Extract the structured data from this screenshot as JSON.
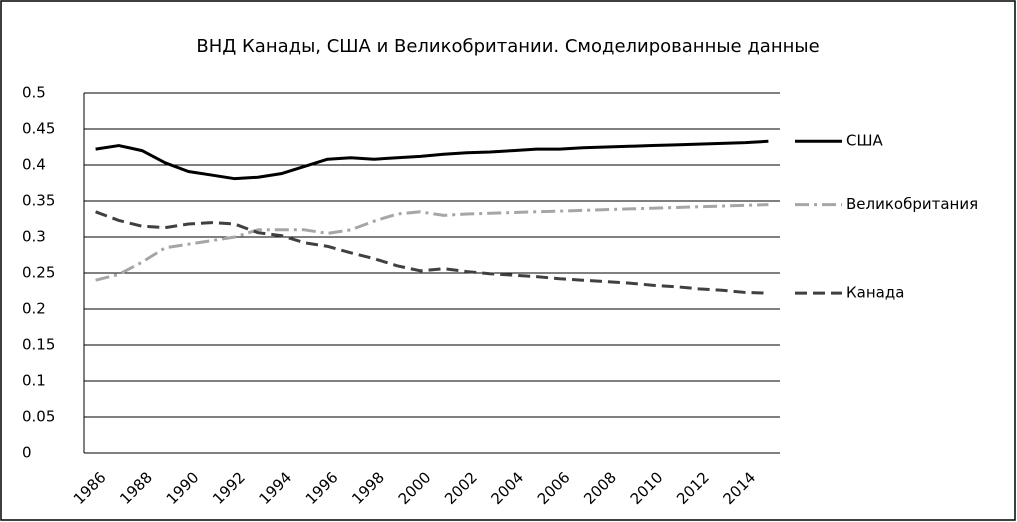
{
  "chart_data": {
    "type": "line",
    "title": "ВНД Канады, США и Великобритании. Смоделированные данные",
    "categories": [
      "1986",
      null,
      "1988",
      null,
      "1990",
      null,
      "1992",
      null,
      "1994",
      null,
      "1996",
      null,
      "1998",
      null,
      "2000",
      null,
      "2002",
      null,
      "2004",
      null,
      "2006",
      null,
      "2008",
      null,
      "2010",
      null,
      "2012",
      null,
      "2014",
      null
    ],
    "series": [
      {
        "name": "США",
        "color": "#000000",
        "dash": "solid",
        "values": [
          0.422,
          0.427,
          0.42,
          0.403,
          0.391,
          0.386,
          0.381,
          0.383,
          0.388,
          0.398,
          0.408,
          0.41,
          0.408,
          0.41,
          0.412,
          0.415,
          0.417,
          0.418,
          0.42,
          0.422,
          0.422,
          0.424,
          0.425,
          0.426,
          0.427,
          0.428,
          0.429,
          0.43,
          0.431,
          0.433
        ]
      },
      {
        "name": "Великобритания",
        "color": "#a6a6a6",
        "dash": "dashdot",
        "values": [
          0.24,
          0.248,
          0.265,
          0.285,
          0.29,
          0.295,
          0.3,
          0.31,
          0.31,
          0.31,
          0.305,
          0.31,
          0.322,
          0.332,
          0.335,
          0.33,
          0.332,
          0.333,
          0.334,
          0.335,
          0.336,
          0.337,
          0.338,
          0.339,
          0.34,
          0.341,
          0.342,
          0.343,
          0.344,
          0.345
        ]
      },
      {
        "name": "Канада",
        "color": "#404040",
        "dash": "dash",
        "values": [
          0.335,
          0.323,
          0.315,
          0.313,
          0.318,
          0.32,
          0.318,
          0.306,
          0.302,
          0.292,
          0.287,
          0.278,
          0.27,
          0.26,
          0.253,
          0.256,
          0.252,
          0.249,
          0.247,
          0.245,
          0.242,
          0.24,
          0.238,
          0.236,
          0.233,
          0.231,
          0.228,
          0.226,
          0.223,
          0.222
        ]
      }
    ],
    "ylim": [
      0,
      0.5
    ],
    "yticks": [
      0,
      0.05,
      0.1,
      0.15,
      0.2,
      0.25,
      0.3,
      0.35,
      0.4,
      0.45,
      0.5
    ],
    "grid": true,
    "legend": "right"
  }
}
